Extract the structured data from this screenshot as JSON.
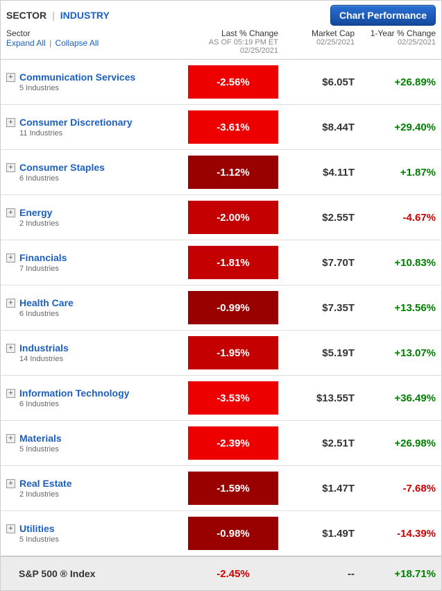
{
  "header": {
    "tab_sector": "SECTOR",
    "tab_industry": "INDUSTRY",
    "chart_button": "Chart Performance"
  },
  "columns": {
    "sector_label": "Sector",
    "expand_all": "Expand All",
    "collapse_all": "Collapse All",
    "change_label": "Last % Change",
    "change_sub1": "AS OF 05:19 PM ET",
    "change_sub2": "02/25/2021",
    "mcap_label": "Market Cap",
    "mcap_sub": "02/25/2021",
    "year_label": "1-Year % Change",
    "year_sub": "02/25/2021"
  },
  "colors": {
    "link": "#1b5fbf",
    "positive": "#008000",
    "negative": "#cc0000",
    "heat_light": "#ee0000",
    "heat_mid": "#c40000",
    "heat_dark": "#990000"
  },
  "sectors": [
    {
      "name": "Communication Services",
      "sub": "5 Industries",
      "change": "-2.56%",
      "heat": "light",
      "mcap": "$6.05T",
      "year": "+26.89%",
      "year_sign": "pos"
    },
    {
      "name": "Consumer Discretionary",
      "sub": "11 Industries",
      "change": "-3.61%",
      "heat": "light",
      "mcap": "$8.44T",
      "year": "+29.40%",
      "year_sign": "pos"
    },
    {
      "name": "Consumer Staples",
      "sub": "6 Industries",
      "change": "-1.12%",
      "heat": "dark",
      "mcap": "$4.11T",
      "year": "+1.87%",
      "year_sign": "pos"
    },
    {
      "name": "Energy",
      "sub": "2 Industries",
      "change": "-2.00%",
      "heat": "mid",
      "mcap": "$2.55T",
      "year": "-4.67%",
      "year_sign": "neg"
    },
    {
      "name": "Financials",
      "sub": "7 Industries",
      "change": "-1.81%",
      "heat": "mid",
      "mcap": "$7.70T",
      "year": "+10.83%",
      "year_sign": "pos"
    },
    {
      "name": "Health Care",
      "sub": "6 Industries",
      "change": "-0.99%",
      "heat": "dark",
      "mcap": "$7.35T",
      "year": "+13.56%",
      "year_sign": "pos"
    },
    {
      "name": "Industrials",
      "sub": "14 Industries",
      "change": "-1.95%",
      "heat": "mid",
      "mcap": "$5.19T",
      "year": "+13.07%",
      "year_sign": "pos"
    },
    {
      "name": "Information Technology",
      "sub": "6 Industries",
      "change": "-3.53%",
      "heat": "light",
      "mcap": "$13.55T",
      "year": "+36.49%",
      "year_sign": "pos"
    },
    {
      "name": "Materials",
      "sub": "5 Industries",
      "change": "-2.39%",
      "heat": "light",
      "mcap": "$2.51T",
      "year": "+26.98%",
      "year_sign": "pos"
    },
    {
      "name": "Real Estate",
      "sub": "2 Industries",
      "change": "-1.59%",
      "heat": "dark",
      "mcap": "$1.47T",
      "year": "-7.68%",
      "year_sign": "neg"
    },
    {
      "name": "Utilities",
      "sub": "5 Industries",
      "change": "-0.98%",
      "heat": "dark",
      "mcap": "$1.49T",
      "year": "-14.39%",
      "year_sign": "neg"
    }
  ],
  "summary": {
    "name": "S&P 500 ® Index",
    "change": "-2.45%",
    "mcap": "--",
    "year": "+18.71%",
    "year_sign": "pos"
  }
}
